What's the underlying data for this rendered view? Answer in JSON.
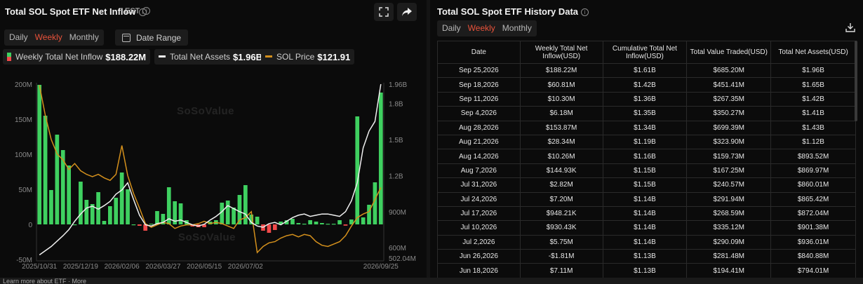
{
  "left": {
    "title": "Total SOL Spot ETF Net Inflow",
    "timezone": "EST",
    "tabs": [
      {
        "label": "Daily",
        "active": false
      },
      {
        "label": "Weekly",
        "active": true
      },
      {
        "label": "Monthly",
        "active": false
      }
    ],
    "date_range_label": "Date Range",
    "legend": {
      "inflow_label": "Weekly Total Net Inflow",
      "inflow_value": "$188.22M",
      "assets_label": "Total Net Assets",
      "assets_value": "$1.96B",
      "price_label": "SOL Price",
      "price_value": "$121.91"
    },
    "watermark": "SoSoValue"
  },
  "chart_data": {
    "type": "bar",
    "x_tick_labels": [
      "2025/10/31",
      "2025/12/19",
      "2026/02/06",
      "2026/03/27",
      "2026/05/15",
      "2026/07/02",
      "2026/09/25"
    ],
    "y_left_ticks": [
      "200M",
      "150M",
      "100M",
      "50M",
      "0",
      "-50M"
    ],
    "y_right_ticks": [
      "1.96B",
      "1.8B",
      "1.5B",
      "1.2B",
      "900M",
      "600M",
      "502.04M"
    ],
    "ylim_left": [
      -50,
      200
    ],
    "ylim_right": [
      502.04,
      1960
    ],
    "series": [
      {
        "name": "Weekly Total Net Inflow",
        "unit": "M",
        "values": [
          199,
          155,
          49,
          128,
          106,
          84,
          0,
          61,
          35,
          29,
          46,
          5,
          26,
          38,
          74,
          50,
          0,
          -2,
          -9,
          1,
          19,
          15,
          53,
          33,
          30,
          6,
          -3,
          -4,
          -4,
          4,
          6,
          31,
          34,
          24,
          42,
          56,
          14,
          11,
          -9,
          -12,
          -8,
          4,
          6,
          8,
          2,
          1,
          6,
          4,
          2,
          0.9,
          0.9,
          6,
          -1.81,
          7,
          154,
          10,
          28,
          60,
          188
        ]
      },
      {
        "name": "Total Net Assets",
        "unit": "M",
        "values": [
          540,
          575,
          610,
          655,
          700,
          750,
          820,
          880,
          930,
          945,
          920,
          950,
          985,
          1045,
          1080,
          1140,
          1000,
          870,
          790,
          780,
          800,
          810,
          840,
          820,
          830,
          810,
          790,
          780,
          795,
          830,
          860,
          900,
          950,
          925,
          900,
          880,
          810,
          780,
          770,
          800,
          810,
          790,
          820,
          850,
          870,
          880,
          860,
          870,
          880,
          880,
          870,
          860,
          900,
          990,
          1140,
          1430,
          1570,
          1650,
          1960
        ]
      },
      {
        "name": "SOL Price",
        "unit": "M",
        "values": [
          1950,
          1700,
          1500,
          1380,
          1330,
          1250,
          1300,
          1240,
          1210,
          1190,
          1210,
          1180,
          1160,
          1210,
          1450,
          1200,
          1050,
          930,
          800,
          770,
          790,
          810,
          800,
          760,
          780,
          790,
          790,
          800,
          820,
          800,
          810,
          800,
          780,
          760,
          830,
          850,
          900,
          560,
          610,
          640,
          650,
          680,
          700,
          710,
          690,
          710,
          700,
          650,
          620,
          610,
          630,
          650,
          700,
          780,
          850,
          880,
          900,
          1000,
          1100
        ]
      }
    ]
  },
  "right": {
    "title": "Total SOL Spot ETF History Data",
    "tabs": [
      {
        "label": "Daily",
        "active": false
      },
      {
        "label": "Weekly",
        "active": true
      },
      {
        "label": "Monthly",
        "active": false
      }
    ],
    "columns": [
      "Date",
      "Weekly Total Net Inflow(USD)",
      "Cumulative Total Net Inflow(USD)",
      "Total Value Traded(USD)",
      "Total Net Assets(USD)"
    ],
    "rows": [
      {
        "date": "Sep 25,2026",
        "inflow": "$188.22M",
        "sign": "pos",
        "cum": "$1.61B",
        "traded": "$685.20M",
        "assets": "$1.96B"
      },
      {
        "date": "Sep 18,2026",
        "inflow": "$60.81M",
        "sign": "pos",
        "cum": "$1.42B",
        "traded": "$451.41M",
        "assets": "$1.65B"
      },
      {
        "date": "Sep 11,2026",
        "inflow": "$10.30M",
        "sign": "pos",
        "cum": "$1.36B",
        "traded": "$267.35M",
        "assets": "$1.42B"
      },
      {
        "date": "Sep 4,2026",
        "inflow": "$6.18M",
        "sign": "pos",
        "cum": "$1.35B",
        "traded": "$350.27M",
        "assets": "$1.41B"
      },
      {
        "date": "Aug 28,2026",
        "inflow": "$153.87M",
        "sign": "pos",
        "cum": "$1.34B",
        "traded": "$699.39M",
        "assets": "$1.43B"
      },
      {
        "date": "Aug 21,2026",
        "inflow": "$28.34M",
        "sign": "pos",
        "cum": "$1.19B",
        "traded": "$323.90M",
        "assets": "$1.12B"
      },
      {
        "date": "Aug 14,2026",
        "inflow": "$10.26M",
        "sign": "pos",
        "cum": "$1.16B",
        "traded": "$159.73M",
        "assets": "$893.52M"
      },
      {
        "date": "Aug 7,2026",
        "inflow": "$144.93K",
        "sign": "pos",
        "cum": "$1.15B",
        "traded": "$167.25M",
        "assets": "$869.97M"
      },
      {
        "date": "Jul 31,2026",
        "inflow": "$2.82M",
        "sign": "pos",
        "cum": "$1.15B",
        "traded": "$240.57M",
        "assets": "$860.01M"
      },
      {
        "date": "Jul 24,2026",
        "inflow": "$7.20M",
        "sign": "pos",
        "cum": "$1.14B",
        "traded": "$291.94M",
        "assets": "$865.42M"
      },
      {
        "date": "Jul 17,2026",
        "inflow": "$948.21K",
        "sign": "pos",
        "cum": "$1.14B",
        "traded": "$268.59M",
        "assets": "$872.04M"
      },
      {
        "date": "Jul 10,2026",
        "inflow": "$930.43K",
        "sign": "pos",
        "cum": "$1.14B",
        "traded": "$335.12M",
        "assets": "$901.38M"
      },
      {
        "date": "Jul 2,2026",
        "inflow": "$5.75M",
        "sign": "pos",
        "cum": "$1.14B",
        "traded": "$290.09M",
        "assets": "$936.01M"
      },
      {
        "date": "Jun 26,2026",
        "inflow": "-$1.81M",
        "sign": "neg",
        "cum": "$1.13B",
        "traded": "$281.48M",
        "assets": "$840.88M"
      },
      {
        "date": "Jun 18,2026",
        "inflow": "$7.11M",
        "sign": "pos",
        "cum": "$1.13B",
        "traded": "$194.41M",
        "assets": "$794.01M"
      }
    ]
  },
  "footer": "Learn more about ETF · More",
  "colors": {
    "green": "#3fd060",
    "red": "#f04a4a",
    "orange": "#d4901c",
    "white": "#f0f0f0",
    "accent": "#e8523a"
  }
}
